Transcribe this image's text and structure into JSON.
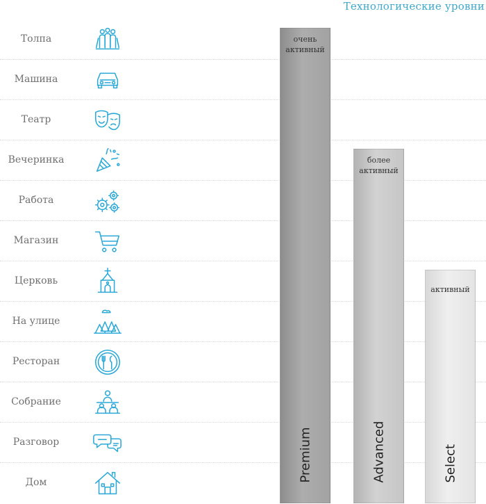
{
  "chart_data": {
    "type": "bar",
    "title": "Технологические уровни",
    "categories": [
      "Premium",
      "Advanced",
      "Select"
    ],
    "series": [
      {
        "values": [
          12,
          9,
          6
        ]
      }
    ],
    "bar_labels": [
      "очень активный",
      "более активный",
      "активный"
    ],
    "bar_colors": [
      "#9e9e9e",
      "#c2c2c2",
      "#e2e2e2"
    ],
    "rows": [
      {
        "label": "Толпа",
        "icon": "crowd-icon"
      },
      {
        "label": "Машина",
        "icon": "car-icon"
      },
      {
        "label": "Театр",
        "icon": "theater-masks-icon"
      },
      {
        "label": "Вечеринка",
        "icon": "party-popper-icon"
      },
      {
        "label": "Работа",
        "icon": "gears-icon"
      },
      {
        "label": "Магазин",
        "icon": "shopping-cart-icon"
      },
      {
        "label": "Церковь",
        "icon": "church-icon"
      },
      {
        "label": "На улице",
        "icon": "outdoor-trees-icon"
      },
      {
        "label": "Ресторан",
        "icon": "restaurant-icon"
      },
      {
        "label": "Собрание",
        "icon": "meeting-icon"
      },
      {
        "label": "Разговор",
        "icon": "conversation-icon"
      },
      {
        "label": "Дом",
        "icon": "house-icon"
      }
    ],
    "grid": "dotted-rows",
    "icon_color": "#2aa8d8"
  }
}
